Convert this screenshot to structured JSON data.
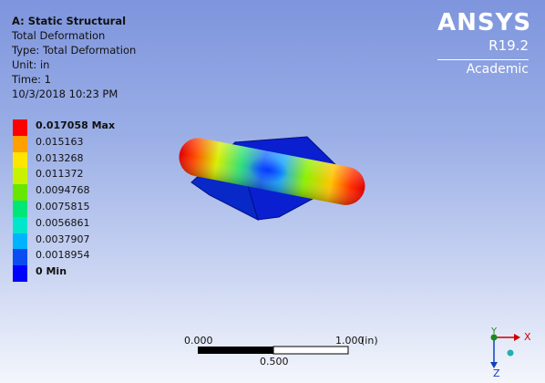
{
  "info": {
    "title": "A: Static Structural",
    "result_name": "Total Deformation",
    "type_line": "Type: Total Deformation",
    "unit_line": "Unit: in",
    "time_line": "Time: 1",
    "timestamp": "10/3/2018 10:23 PM"
  },
  "brand": {
    "logo": "ANSYS",
    "version": "R19.2",
    "edition": "Academic"
  },
  "legend": {
    "entries": [
      {
        "label": "0.017058 Max",
        "color": "#ff0000"
      },
      {
        "label": "0.015163",
        "color": "#ff9f00"
      },
      {
        "label": "0.013268",
        "color": "#ffe600"
      },
      {
        "label": "0.011372",
        "color": "#c8f200"
      },
      {
        "label": "0.0094768",
        "color": "#66e600"
      },
      {
        "label": "0.0075815",
        "color": "#00e679"
      },
      {
        "label": "0.0056861",
        "color": "#00e6cc"
      },
      {
        "label": "0.0037907",
        "color": "#00b3ff"
      },
      {
        "label": "0.0018954",
        "color": "#0a4cf2"
      },
      {
        "label": "0 Min",
        "color": "#0000ff"
      }
    ]
  },
  "scale_bar": {
    "left_label": "0.000",
    "right_label": "1.000",
    "unit": "(in)",
    "mid_label": "0.500"
  },
  "triad": {
    "x_label": "X",
    "y_label": "Y",
    "z_label": "Z"
  }
}
